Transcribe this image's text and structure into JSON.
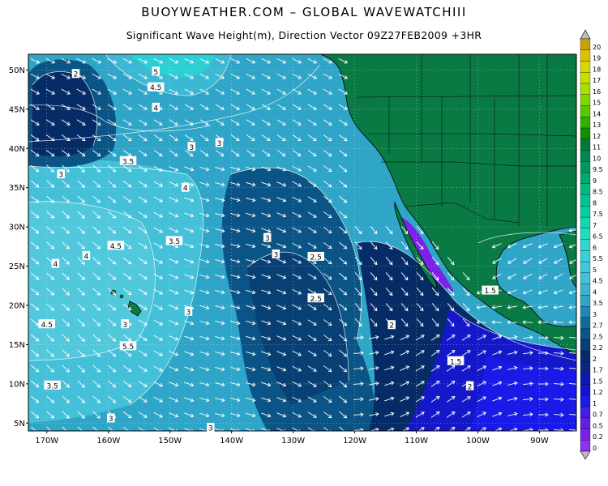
{
  "header": {
    "title": "BUOYWEATHER.COM  –  GLOBAL WAVEWATCHIII",
    "subtitle": "Significant Wave Height(m), Direction Vector 09Z27FEB2009 +3HR"
  },
  "map": {
    "lon_range": [
      -173,
      -84
    ],
    "lat_range": [
      4,
      52
    ],
    "lat_ticks": [
      {
        "v": 50,
        "label": "50N"
      },
      {
        "v": 45,
        "label": "45N"
      },
      {
        "v": 40,
        "label": "40N"
      },
      {
        "v": 35,
        "label": "35N"
      },
      {
        "v": 30,
        "label": "30N"
      },
      {
        "v": 25,
        "label": "25N"
      },
      {
        "v": 20,
        "label": "20N"
      },
      {
        "v": 15,
        "label": "15N"
      },
      {
        "v": 10,
        "label": "10N"
      },
      {
        "v": 5,
        "label": "5N"
      }
    ],
    "lon_ticks": [
      {
        "v": -170,
        "label": "170W"
      },
      {
        "v": -160,
        "label": "160W"
      },
      {
        "v": -150,
        "label": "150W"
      },
      {
        "v": -140,
        "label": "140W"
      },
      {
        "v": -130,
        "label": "130W"
      },
      {
        "v": -120,
        "label": "120W"
      },
      {
        "v": -110,
        "label": "110W"
      },
      {
        "v": -100,
        "label": "100W"
      },
      {
        "v": -90,
        "label": "90W"
      }
    ],
    "contour_labels": [
      {
        "lon": -165.3,
        "lat": 49.5,
        "text": "2"
      },
      {
        "lon": -152.3,
        "lat": 49.8,
        "text": "5"
      },
      {
        "lon": -152.3,
        "lat": 47.8,
        "text": "4.5"
      },
      {
        "lon": -152.3,
        "lat": 45.2,
        "text": "4"
      },
      {
        "lon": -156.8,
        "lat": 38.4,
        "text": "3.5"
      },
      {
        "lon": -146.5,
        "lat": 40.2,
        "text": "3"
      },
      {
        "lon": -142,
        "lat": 40.7,
        "text": "3"
      },
      {
        "lon": -167.7,
        "lat": 36.7,
        "text": "3"
      },
      {
        "lon": -147.5,
        "lat": 35.0,
        "text": "4"
      },
      {
        "lon": -158.8,
        "lat": 27.6,
        "text": "4.5"
      },
      {
        "lon": -149.3,
        "lat": 28.2,
        "text": "3.5"
      },
      {
        "lon": -163.6,
        "lat": 26.3,
        "text": "4"
      },
      {
        "lon": -168.6,
        "lat": 25.3,
        "text": "4"
      },
      {
        "lon": -134.2,
        "lat": 28.6,
        "text": "3"
      },
      {
        "lon": -132.8,
        "lat": 26.5,
        "text": "3"
      },
      {
        "lon": -126.3,
        "lat": 26.2,
        "text": "2.5"
      },
      {
        "lon": -126.3,
        "lat": 20.9,
        "text": "2.5"
      },
      {
        "lon": -147.0,
        "lat": 19.2,
        "text": "3"
      },
      {
        "lon": -157.3,
        "lat": 17.6,
        "text": "3"
      },
      {
        "lon": -170.0,
        "lat": 17.6,
        "text": "4.5"
      },
      {
        "lon": -156.8,
        "lat": 14.8,
        "text": "5.5"
      },
      {
        "lon": -114.0,
        "lat": 17.5,
        "text": "2"
      },
      {
        "lon": -169.1,
        "lat": 9.8,
        "text": "3.5"
      },
      {
        "lon": -103.6,
        "lat": 12.9,
        "text": "1.5"
      },
      {
        "lon": -101.3,
        "lat": 9.7,
        "text": "2"
      },
      {
        "lon": -98.0,
        "lat": 21.9,
        "text": "1.5"
      },
      {
        "lon": -159.6,
        "lat": 5.6,
        "text": "3"
      },
      {
        "lon": -143.4,
        "lat": 4.4,
        "text": "3"
      }
    ]
  },
  "legend": {
    "items": [
      {
        "label": "20",
        "color": "#c8a000"
      },
      {
        "label": "19",
        "color": "#e0c000"
      },
      {
        "label": "18",
        "color": "#d8d800"
      },
      {
        "label": "17",
        "color": "#c8e000"
      },
      {
        "label": "16",
        "color": "#a8e000"
      },
      {
        "label": "15",
        "color": "#80d800"
      },
      {
        "label": "14",
        "color": "#58c800"
      },
      {
        "label": "13",
        "color": "#30b000"
      },
      {
        "label": "12",
        "color": "#109000"
      },
      {
        "label": "11",
        "color": "#007a3c"
      },
      {
        "label": "10",
        "color": "#008850"
      },
      {
        "label": "9.5",
        "color": "#009860"
      },
      {
        "label": "9",
        "color": "#00a870"
      },
      {
        "label": "8.5",
        "color": "#00b880"
      },
      {
        "label": "8",
        "color": "#00c490"
      },
      {
        "label": "7.5",
        "color": "#00d0a0"
      },
      {
        "label": "7",
        "color": "#10d8b0"
      },
      {
        "label": "6.5",
        "color": "#20dcc0"
      },
      {
        "label": "6",
        "color": "#30d8d0"
      },
      {
        "label": "5.5",
        "color": "#38d0d8"
      },
      {
        "label": "5",
        "color": "#40c8dc"
      },
      {
        "label": "4.5",
        "color": "#44c0d8"
      },
      {
        "label": "4",
        "color": "#3cb4d0"
      },
      {
        "label": "3.5",
        "color": "#2fa5c8"
      },
      {
        "label": "3",
        "color": "#1e8ab4"
      },
      {
        "label": "2.7",
        "color": "#0e6c9a"
      },
      {
        "label": "2.5",
        "color": "#0a5585"
      },
      {
        "label": "2.2",
        "color": "#083f74"
      },
      {
        "label": "2",
        "color": "#062c68"
      },
      {
        "label": "1.7",
        "color": "#0a2488"
      },
      {
        "label": "1.5",
        "color": "#1018b0"
      },
      {
        "label": "1.2",
        "color": "#1414d0"
      },
      {
        "label": "1",
        "color": "#1a1ae8"
      },
      {
        "label": "0.7",
        "color": "#4020e0"
      },
      {
        "label": "0.5",
        "color": "#6020e0"
      },
      {
        "label": "0.2",
        "color": "#7a22e8"
      },
      {
        "label": "0",
        "color": "#9030f0"
      }
    ]
  },
  "colors": {
    "land": "#0a7a44",
    "arrow": "#ffffff",
    "coast": "#000000"
  }
}
